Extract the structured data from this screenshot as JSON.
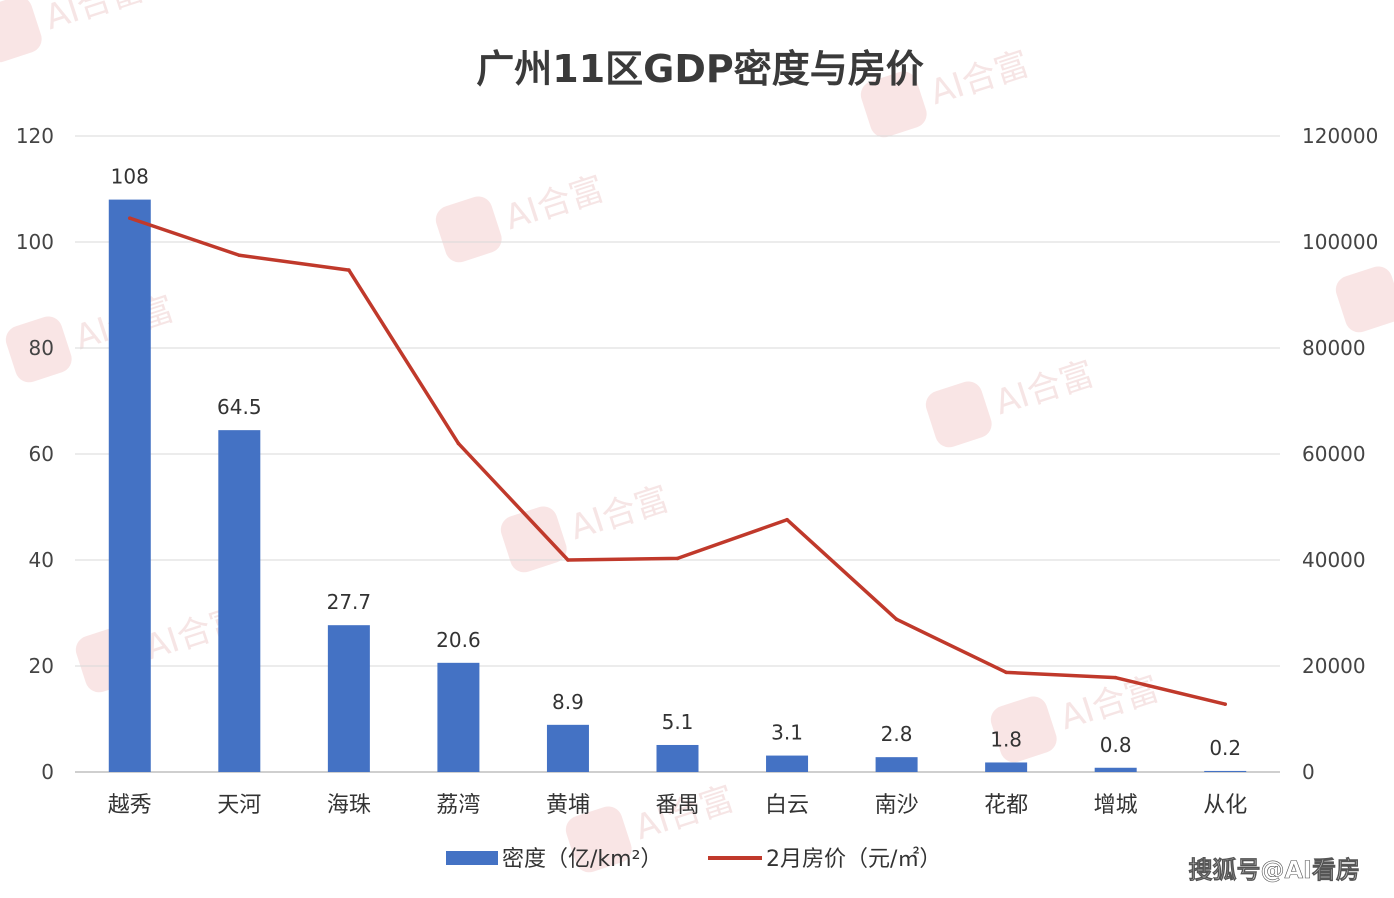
{
  "chart_data": {
    "type": "bar+line",
    "title": "广州11区GDP密度与房价",
    "categories": [
      "越秀",
      "天河",
      "海珠",
      "荔湾",
      "黄埔",
      "番禺",
      "白云",
      "南沙",
      "花都",
      "增城",
      "从化"
    ],
    "series": [
      {
        "name": "密度（亿/km²）",
        "type": "bar",
        "axis": "left",
        "color": "#4472c4",
        "values": [
          108,
          64.5,
          27.7,
          20.6,
          8.9,
          5.1,
          3.1,
          2.8,
          1.8,
          0.8,
          0.2
        ],
        "labels": [
          "108",
          "64.5",
          "27.7",
          "20.6",
          "8.9",
          "5.1",
          "3.1",
          "2.8",
          "1.8",
          "0.8",
          "0.2"
        ]
      },
      {
        "name": "2月房价（元/㎡）",
        "type": "line",
        "axis": "right",
        "color": "#c0392b",
        "values": [
          104500,
          97500,
          94700,
          62000,
          40000,
          40300,
          47600,
          28800,
          18800,
          17800,
          12800
        ]
      }
    ],
    "y_left": {
      "min": 0,
      "max": 120,
      "ticks": [
        "0",
        "20",
        "40",
        "60",
        "80",
        "100",
        "120"
      ]
    },
    "y_right": {
      "min": 0,
      "max": 120000,
      "ticks": [
        "0",
        "20000",
        "40000",
        "60000",
        "80000",
        "100000",
        "120000"
      ]
    },
    "grid": true,
    "legend_position": "bottom"
  },
  "watermark": {
    "text": "AI合富"
  },
  "credit": "搜狐号@AI看房"
}
